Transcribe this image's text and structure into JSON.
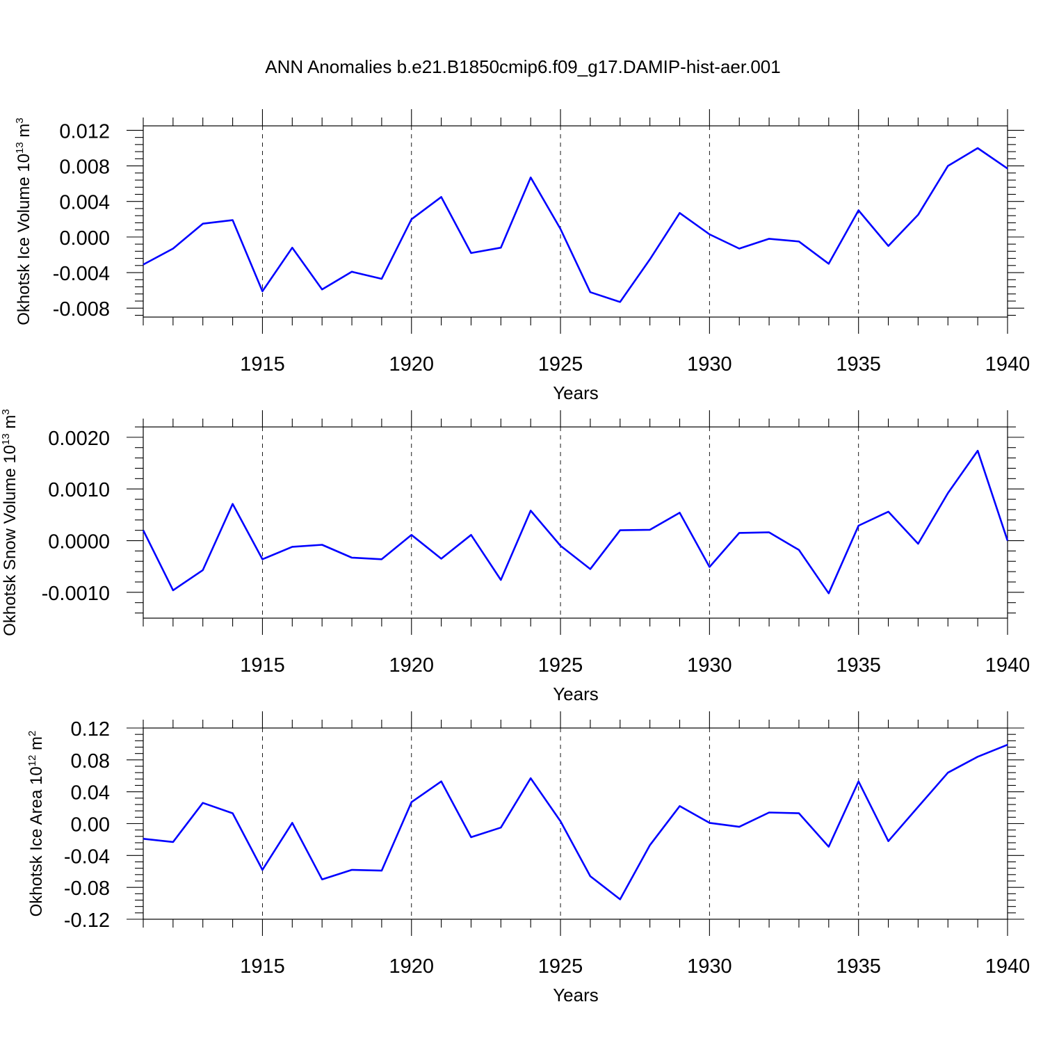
{
  "title": "ANN Anomalies b.e21.B1850cmip6.f09_g17.DAMIP-hist-aer.001",
  "colors": {
    "series": "#0000ff",
    "axis": "#000000",
    "background": "#ffffff"
  },
  "chart_data": [
    {
      "type": "line",
      "ylabel": {
        "text": "Okhotsk Ice Volume 10",
        "exp": "13",
        "unit": " m",
        "unit_exp": "3"
      },
      "xlabel": "Years",
      "xlim": [
        1911,
        1940
      ],
      "ylim": [
        -0.009,
        0.0125
      ],
      "yticks": [
        -0.008,
        -0.004,
        0.0,
        0.004,
        0.008,
        0.012
      ],
      "ytick_labels": [
        "-0.008",
        "-0.004",
        "0.000",
        "0.004",
        "0.008",
        "0.012"
      ],
      "xticks": [
        1915,
        1920,
        1925,
        1930,
        1935,
        1940
      ],
      "xtick_labels": [
        "1915",
        "1920",
        "1925",
        "1930",
        "1935",
        "1940"
      ],
      "grid": "dashed vertical at major x ticks",
      "x": [
        1911,
        1912,
        1913,
        1914,
        1915,
        1916,
        1917,
        1918,
        1919,
        1920,
        1921,
        1922,
        1923,
        1924,
        1925,
        1926,
        1927,
        1928,
        1929,
        1930,
        1931,
        1932,
        1933,
        1934,
        1935,
        1936,
        1937,
        1938,
        1939,
        1940
      ],
      "series": [
        {
          "name": "Okhotsk Ice Volume",
          "values": [
            -0.0031,
            -0.0013,
            0.0015,
            0.0019,
            -0.0061,
            -0.0012,
            -0.0059,
            -0.0039,
            -0.0047,
            0.002,
            0.0045,
            -0.0018,
            -0.0012,
            0.0067,
            0.0009,
            -0.0062,
            -0.0073,
            -0.0025,
            0.0027,
            0.0003,
            -0.0013,
            -0.0002,
            -0.0005,
            -0.003,
            0.003,
            -0.001,
            0.0025,
            0.008,
            0.01,
            0.0077
          ]
        }
      ]
    },
    {
      "type": "line",
      "ylabel": {
        "text": "Okhotsk Snow Volume 10",
        "exp": "13",
        "unit": " m",
        "unit_exp": "3"
      },
      "xlabel": "Years",
      "xlim": [
        1911,
        1940
      ],
      "ylim": [
        -0.0015,
        0.0022
      ],
      "yticks": [
        -0.001,
        0.0,
        0.001,
        0.002
      ],
      "ytick_labels": [
        "-0.0010",
        "0.0000",
        "0.0010",
        "0.0020"
      ],
      "xticks": [
        1915,
        1920,
        1925,
        1930,
        1935,
        1940
      ],
      "xtick_labels": [
        "1915",
        "1920",
        "1925",
        "1930",
        "1935",
        "1940"
      ],
      "grid": "dashed vertical at major x ticks",
      "x": [
        1911,
        1912,
        1913,
        1914,
        1915,
        1916,
        1917,
        1918,
        1919,
        1920,
        1921,
        1922,
        1923,
        1924,
        1925,
        1926,
        1927,
        1928,
        1929,
        1930,
        1931,
        1932,
        1933,
        1934,
        1935,
        1936,
        1937,
        1938,
        1939,
        1940
      ],
      "series": [
        {
          "name": "Okhotsk Snow Volume",
          "values": [
            0.0002,
            -0.00096,
            -0.00057,
            0.00071,
            -0.00036,
            -0.00012,
            -8e-05,
            -0.00033,
            -0.00036,
            0.00011,
            -0.00035,
            0.00011,
            -0.00076,
            0.00058,
            -0.0001,
            -0.00055,
            0.0002,
            0.00021,
            0.00054,
            -0.00051,
            0.00015,
            0.00016,
            -0.00018,
            -0.00102,
            0.00029,
            0.00056,
            -6e-05,
            0.00092,
            0.00174,
            0.0
          ]
        }
      ]
    },
    {
      "type": "line",
      "ylabel": {
        "text": "Okhotsk Ice Area 10",
        "exp": "12",
        "unit": " m",
        "unit_exp": "2"
      },
      "xlabel": "Years",
      "xlim": [
        1911,
        1940
      ],
      "ylim": [
        -0.12,
        0.12
      ],
      "yticks": [
        -0.12,
        -0.08,
        -0.04,
        0.0,
        0.04,
        0.08,
        0.12
      ],
      "ytick_labels": [
        "-0.12",
        "-0.08",
        "-0.04",
        "0.00",
        "0.04",
        "0.08",
        "0.12"
      ],
      "xticks": [
        1915,
        1920,
        1925,
        1930,
        1935,
        1940
      ],
      "xtick_labels": [
        "1915",
        "1920",
        "1925",
        "1930",
        "1935",
        "1940"
      ],
      "grid": "dashed vertical at major x ticks",
      "x": [
        1911,
        1912,
        1913,
        1914,
        1915,
        1916,
        1917,
        1918,
        1919,
        1920,
        1921,
        1922,
        1923,
        1924,
        1925,
        1926,
        1927,
        1928,
        1929,
        1930,
        1931,
        1932,
        1933,
        1934,
        1935,
        1936,
        1937,
        1938,
        1939,
        1940
      ],
      "series": [
        {
          "name": "Okhotsk Ice Area",
          "values": [
            -0.019,
            -0.023,
            0.026,
            0.013,
            -0.058,
            0.001,
            -0.07,
            -0.058,
            -0.059,
            0.027,
            0.053,
            -0.017,
            -0.005,
            0.057,
            0.003,
            -0.066,
            -0.095,
            -0.027,
            0.022,
            0.001,
            -0.004,
            0.014,
            0.013,
            -0.029,
            0.053,
            -0.022,
            0.021,
            0.064,
            0.084,
            0.099
          ]
        }
      ]
    }
  ]
}
